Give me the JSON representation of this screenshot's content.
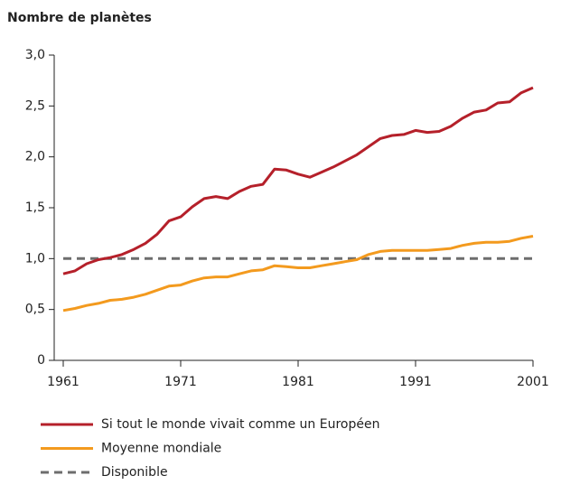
{
  "chart_data": {
    "type": "line",
    "title": "Nombre de planètes",
    "x": [
      1961,
      1962,
      1963,
      1964,
      1965,
      1966,
      1967,
      1968,
      1969,
      1970,
      1971,
      1972,
      1973,
      1974,
      1975,
      1976,
      1977,
      1978,
      1979,
      1980,
      1981,
      1982,
      1983,
      1984,
      1985,
      1986,
      1987,
      1988,
      1989,
      1990,
      1991,
      1992,
      1993,
      1994,
      1995,
      1996,
      1997,
      1998,
      1999,
      2000,
      2001
    ],
    "series": [
      {
        "name": "Si tout le monde vivait comme un Européen",
        "color": "#b5202a",
        "style": "solid",
        "values": [
          0.85,
          0.88,
          0.95,
          0.99,
          1.01,
          1.04,
          1.09,
          1.15,
          1.24,
          1.37,
          1.41,
          1.51,
          1.59,
          1.61,
          1.59,
          1.66,
          1.71,
          1.73,
          1.88,
          1.87,
          1.83,
          1.8,
          1.85,
          1.9,
          1.96,
          2.02,
          2.1,
          2.18,
          2.21,
          2.22,
          2.26,
          2.24,
          2.25,
          2.3,
          2.38,
          2.44,
          2.46,
          2.53,
          2.54,
          2.63,
          2.68
        ]
      },
      {
        "name": "Moyenne mondiale",
        "color": "#f39a1e",
        "style": "solid",
        "values": [
          0.49,
          0.51,
          0.54,
          0.56,
          0.59,
          0.6,
          0.62,
          0.65,
          0.69,
          0.73,
          0.74,
          0.78,
          0.81,
          0.82,
          0.82,
          0.85,
          0.88,
          0.89,
          0.93,
          0.92,
          0.91,
          0.91,
          0.93,
          0.95,
          0.97,
          0.99,
          1.04,
          1.07,
          1.08,
          1.08,
          1.08,
          1.08,
          1.09,
          1.1,
          1.13,
          1.15,
          1.16,
          1.16,
          1.17,
          1.2,
          1.22
        ]
      },
      {
        "name": "Disponible",
        "color": "#6d6d6d",
        "style": "dashed",
        "values": [
          1,
          1,
          1,
          1,
          1,
          1,
          1,
          1,
          1,
          1,
          1,
          1,
          1,
          1,
          1,
          1,
          1,
          1,
          1,
          1,
          1,
          1,
          1,
          1,
          1,
          1,
          1,
          1,
          1,
          1,
          1,
          1,
          1,
          1,
          1,
          1,
          1,
          1,
          1,
          1,
          1
        ]
      }
    ],
    "xlim": [
      1961,
      2001
    ],
    "xticks": [
      1961,
      1971,
      1981,
      1991,
      2001
    ],
    "ylim": [
      0,
      3
    ],
    "yticks": [
      0,
      {
        "value": 0.5,
        "label": "0,5"
      },
      {
        "value": 1,
        "label": "1,0"
      },
      {
        "value": 1.5,
        "label": "1,5"
      },
      {
        "value": 2,
        "label": "2,0"
      },
      {
        "value": 2.5,
        "label": "2,5"
      },
      {
        "value": 3,
        "label": "3,0"
      }
    ],
    "grid": false
  }
}
